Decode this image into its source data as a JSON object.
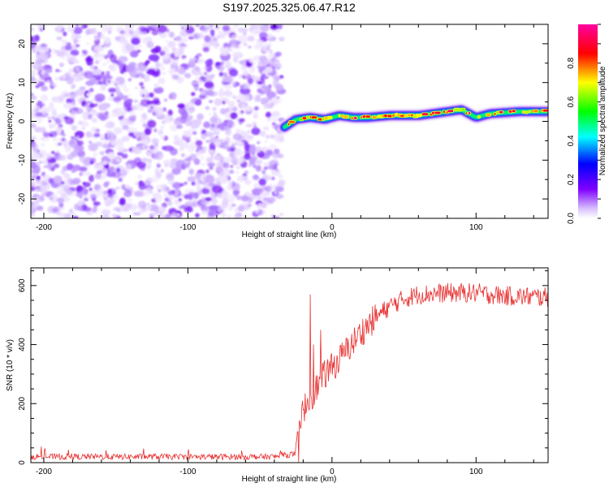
{
  "figure": {
    "title": "S197.2025.325.06.47.R12"
  },
  "chart_data": [
    {
      "type": "heatmap",
      "title": "S197.2025.325.06.47.R12",
      "xlabel": "Height of straight line (km)",
      "ylabel": "Frequency (Hz)",
      "xlim": [
        -209,
        150
      ],
      "ylim": [
        -25,
        25
      ],
      "xticks": [
        -200,
        -100,
        0,
        100
      ],
      "xtick_labels": [
        "-200",
        "-100",
        "0",
        "100"
      ],
      "yticks": [
        -20,
        -10,
        0,
        10,
        20
      ],
      "ytick_labels": [
        "-20",
        "-10",
        "0",
        "10",
        "20"
      ],
      "noise_region_x": [
        -209,
        -37
      ],
      "transition_x": -35,
      "signal_track": {
        "x": [
          -33,
          -25,
          -15,
          -5,
          5,
          15,
          25,
          40,
          60,
          80,
          90,
          100,
          110,
          130,
          150
        ],
        "freq_hz": [
          -1.5,
          0.5,
          1.0,
          0.5,
          1.5,
          1.0,
          1.0,
          1.5,
          1.5,
          2.5,
          3.0,
          1.0,
          2.0,
          2.5,
          2.5
        ]
      },
      "colorbar": {
        "label": "Normalized spectral amplitude",
        "range": [
          0.0,
          1.0
        ],
        "ticks": [
          0.0,
          0.2,
          0.4,
          0.6,
          0.8
        ],
        "tick_labels": [
          "0.0",
          "0.2",
          "0.4",
          "0.6",
          "0.8"
        ],
        "colormap": [
          "#ffffff",
          "#7f00ff",
          "#0000ff",
          "#00ffff",
          "#00ff00",
          "#ffff00",
          "#ff0000",
          "#ff00a0"
        ]
      }
    },
    {
      "type": "line",
      "xlabel": "Height of straight line (km)",
      "ylabel": "SNR (10 * v/v)",
      "xlim": [
        -209,
        150
      ],
      "ylim": [
        0,
        660
      ],
      "xticks": [
        -200,
        -100,
        0,
        100
      ],
      "xtick_labels": [
        "-200",
        "-100",
        "0",
        "100"
      ],
      "yticks": [
        0,
        200,
        400,
        600
      ],
      "ytick_labels": [
        "0",
        "200",
        "400",
        "600"
      ],
      "series": [
        {
          "name": "SNR",
          "color": "#e83030",
          "envelope_x": [
            -209,
            -40,
            -25,
            -22,
            -20,
            -15,
            -10,
            -5,
            0,
            10,
            20,
            30,
            40,
            50,
            60,
            80,
            100,
            120,
            150
          ],
          "envelope_y": [
            20,
            20,
            30,
            120,
            180,
            220,
            260,
            300,
            320,
            380,
            440,
            490,
            530,
            555,
            570,
            575,
            575,
            565,
            560
          ],
          "noise_amplitude": 28,
          "spike_x": [
            -15,
            -13,
            -8
          ],
          "spike_y": [
            570,
            400,
            450
          ]
        }
      ]
    }
  ]
}
